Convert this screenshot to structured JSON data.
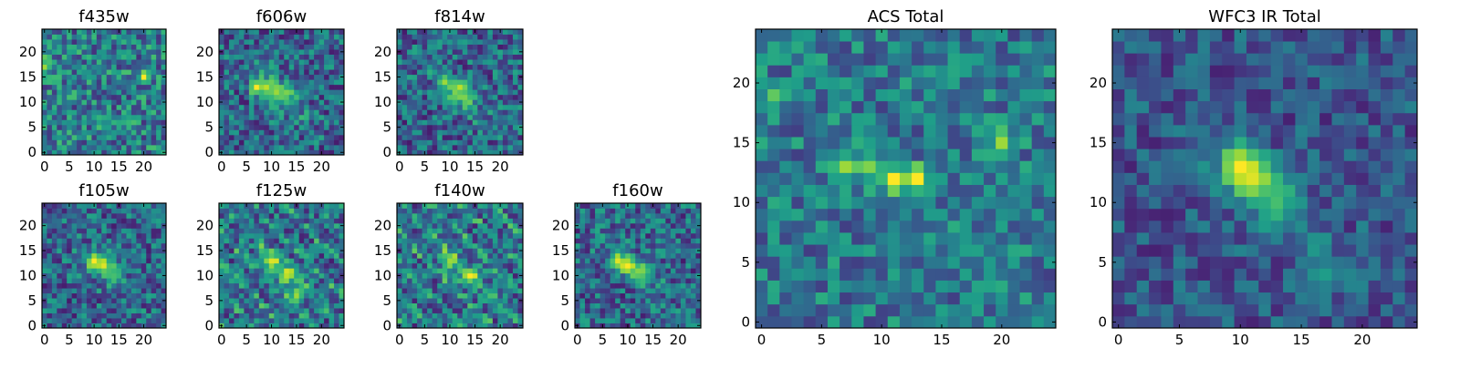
{
  "figure": {
    "description_colormap": "viridis",
    "colormap_stops": [
      "#440154",
      "#482878",
      "#3e4989",
      "#31688e",
      "#26828e",
      "#1f9e89",
      "#35b779",
      "#6ece58",
      "#b5de2b",
      "#fde725"
    ]
  },
  "chart_data": [
    {
      "type": "heatmap",
      "title": "f435w",
      "grid_size": 25,
      "xticks": [
        "0",
        "5",
        "10",
        "15",
        "20"
      ],
      "yticks": [
        "0",
        "5",
        "10",
        "15",
        "20"
      ],
      "pattern": "noise",
      "peaks": [
        {
          "x": 20,
          "y": 15,
          "v": 1.0
        },
        {
          "x": 0,
          "y": 17,
          "v": 0.85
        },
        {
          "x": 0,
          "y": 19,
          "v": 0.75
        }
      ]
    },
    {
      "type": "heatmap",
      "title": "f606w",
      "grid_size": 25,
      "xticks": [
        "0",
        "5",
        "10",
        "15",
        "20"
      ],
      "yticks": [
        "0",
        "5",
        "10",
        "15",
        "20"
      ],
      "pattern": "source",
      "peaks": [
        {
          "x": 7,
          "y": 13,
          "v": 1.0
        },
        {
          "x": 9,
          "y": 13,
          "v": 0.9
        },
        {
          "x": 11,
          "y": 12,
          "v": 0.85
        },
        {
          "x": 13,
          "y": 12,
          "v": 0.8
        }
      ]
    },
    {
      "type": "heatmap",
      "title": "f814w",
      "grid_size": 25,
      "xticks": [
        "0",
        "5",
        "10",
        "15",
        "20"
      ],
      "yticks": [
        "0",
        "5",
        "10",
        "15",
        "20"
      ],
      "pattern": "source",
      "peaks": [
        {
          "x": 9,
          "y": 14,
          "v": 0.85
        },
        {
          "x": 12,
          "y": 13,
          "v": 0.9
        },
        {
          "x": 13,
          "y": 11,
          "v": 0.8
        }
      ]
    },
    {
      "type": "heatmap",
      "title": "f105w",
      "grid_size": 25,
      "xticks": [
        "0",
        "5",
        "10",
        "15",
        "20"
      ],
      "yticks": [
        "0",
        "5",
        "10",
        "15",
        "20"
      ],
      "pattern": "source",
      "peaks": [
        {
          "x": 10,
          "y": 13,
          "v": 1.0
        },
        {
          "x": 12,
          "y": 12,
          "v": 0.95
        },
        {
          "x": 14,
          "y": 10,
          "v": 0.7
        }
      ]
    },
    {
      "type": "heatmap",
      "title": "f125w",
      "grid_size": 25,
      "xticks": [
        "0",
        "5",
        "10",
        "15",
        "20"
      ],
      "yticks": [
        "0",
        "5",
        "10",
        "15",
        "20"
      ],
      "pattern": "streaks",
      "peaks": [
        {
          "x": 10,
          "y": 13,
          "v": 0.95
        },
        {
          "x": 13,
          "y": 10,
          "v": 0.9
        },
        {
          "x": 15,
          "y": 6,
          "v": 0.85
        }
      ]
    },
    {
      "type": "heatmap",
      "title": "f140w",
      "grid_size": 25,
      "xticks": [
        "0",
        "5",
        "10",
        "15",
        "20"
      ],
      "yticks": [
        "0",
        "5",
        "10",
        "15",
        "20"
      ],
      "pattern": "streaks",
      "peaks": [
        {
          "x": 14,
          "y": 10,
          "v": 1.0
        },
        {
          "x": 10,
          "y": 13,
          "v": 0.85
        },
        {
          "x": 18,
          "y": 6,
          "v": 0.7
        }
      ]
    },
    {
      "type": "heatmap",
      "title": "f160w",
      "grid_size": 25,
      "xticks": [
        "0",
        "5",
        "10",
        "15",
        "20"
      ],
      "yticks": [
        "0",
        "5",
        "10",
        "15",
        "20"
      ],
      "pattern": "source",
      "peaks": [
        {
          "x": 8,
          "y": 13,
          "v": 0.95
        },
        {
          "x": 10,
          "y": 12,
          "v": 1.0
        },
        {
          "x": 13,
          "y": 11,
          "v": 0.8
        }
      ]
    },
    {
      "type": "heatmap",
      "title": "ACS Total",
      "grid_size": 25,
      "xticks": [
        "0",
        "5",
        "10",
        "15",
        "20"
      ],
      "yticks": [
        "0",
        "5",
        "10",
        "15",
        "20"
      ],
      "pattern": "acs",
      "peaks": [
        {
          "x": 7,
          "y": 13,
          "v": 0.85
        },
        {
          "x": 9,
          "y": 13,
          "v": 0.8
        },
        {
          "x": 11,
          "y": 12,
          "v": 1.0
        },
        {
          "x": 13,
          "y": 12,
          "v": 1.0
        },
        {
          "x": 1,
          "y": 19,
          "v": 0.75
        },
        {
          "x": 20,
          "y": 15,
          "v": 0.85
        }
      ]
    },
    {
      "type": "heatmap",
      "title": "WFC3 IR Total",
      "grid_size": 25,
      "xticks": [
        "0",
        "5",
        "10",
        "15",
        "20"
      ],
      "yticks": [
        "0",
        "5",
        "10",
        "15",
        "20"
      ],
      "pattern": "ir",
      "peaks": [
        {
          "x": 10,
          "y": 13,
          "v": 1.0
        },
        {
          "x": 11,
          "y": 12,
          "v": 0.95
        },
        {
          "x": 13,
          "y": 10,
          "v": 0.7
        },
        {
          "x": 17,
          "y": 4,
          "v": 0.55
        }
      ]
    }
  ]
}
